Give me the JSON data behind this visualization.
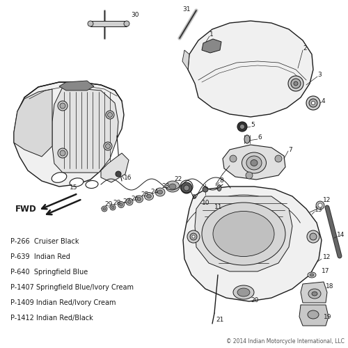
{
  "background_color": "#ffffff",
  "parts_list": [
    "P-266  Cruiser Black",
    "P-639  Indian Red",
    "P-640  Springfield Blue",
    "P-1407 Springfield Blue/Ivory Cream",
    "P-1409 Indian Red/Ivory Cream",
    "P-1412 Indian Red/Black"
  ],
  "copyright": "© 2014 Indian Motorcycle International, LLC",
  "fwd_label": "FWD",
  "line_color": "#1a1a1a",
  "label_color": "#1a1a1a",
  "label_fontsize": 6.5,
  "parts_list_fontsize": 7.0,
  "copyright_fontsize": 5.5,
  "fwd_fontsize": 8.5
}
